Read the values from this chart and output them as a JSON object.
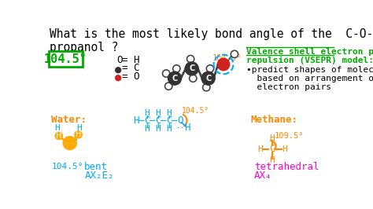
{
  "bg_color": "#ffffff",
  "title_text": "What is the most likely bond angle of the  C-O-H  bond in a molecule of\npropanol ?",
  "title_color": "#000000",
  "title_fontsize": 10.5,
  "answer_box_text": "104.5°",
  "answer_box_color": "#00aa00",
  "answer_box_bg": "#ffffff",
  "vsepr_title_line1": "Valence shell electron pair",
  "vsepr_title_line2": "repulsion (VSEPR) model:",
  "vsepr_color": "#00aa00",
  "vsepr_body_line1": "•predict shapes of molecules",
  "vsepr_body_line2": "  based on arrangement of",
  "vsepr_body_line3": "  electron pairs",
  "vsepr_body_color": "#000000",
  "water_label": "Water:",
  "water_color": "#ff8800",
  "water_angle": "104.5°",
  "water_angle_color": "#00aaff",
  "ax2e2_line1": "AX₂E₂",
  "ax2e2_line2": "bent",
  "ax2e2_color": "#00aaff",
  "methane_label": "Methane:",
  "methane_color": "#ff8800",
  "methane_angle": "109.5°",
  "methane_angle_color": "#ff8800",
  "ax4_line1": "AX₄",
  "ax4_line2": "tetrahedral",
  "ax4_color": "#ff00cc",
  "propanol_formula_color": "#00aaff",
  "angle_label_104": "104.5°",
  "angle_color_104": "#ff8800",
  "legend_h_color": "#000000",
  "legend_c_color": "#333333",
  "legend_o_color": "#cc2222"
}
